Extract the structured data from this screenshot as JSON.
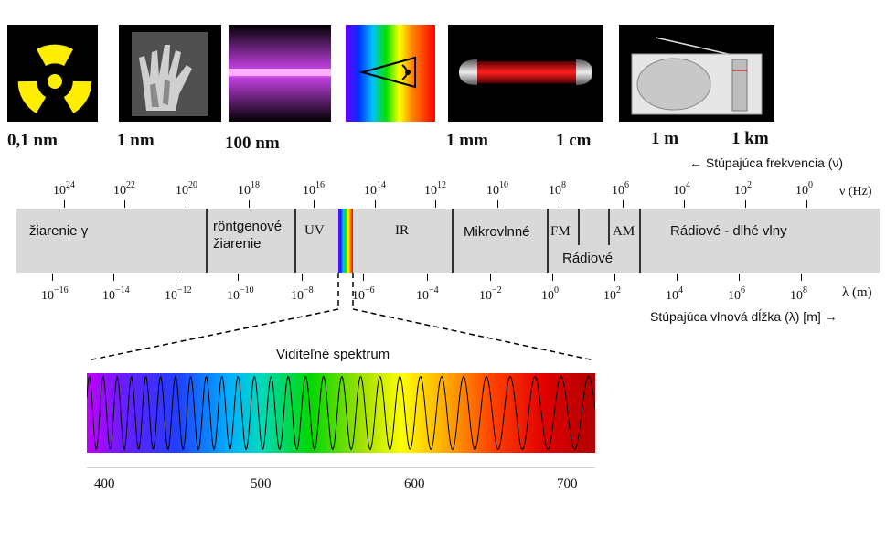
{
  "top_labels": {
    "l1": "0,1 nm",
    "l2": "1 nm",
    "l3": "100 nm",
    "l4": "1 mm",
    "l5": "1 cm",
    "l6": "1 m",
    "l7": "1 km"
  },
  "icons": {
    "i1": "radiation-icon",
    "i2": "xray-hand-icon",
    "i3": "uv-lamp-icon",
    "i4": "eye-prism-icon",
    "i5": "heater-icon",
    "i6": "radio-icon"
  },
  "freq_caption": "← Stúpajúca frekvencia (ν)",
  "freq_unit": "ν (Hz)",
  "freq_ticks": [
    {
      "base": "10",
      "exp": "24"
    },
    {
      "base": "10",
      "exp": "22"
    },
    {
      "base": "10",
      "exp": "20"
    },
    {
      "base": "10",
      "exp": "18"
    },
    {
      "base": "10",
      "exp": "16"
    },
    {
      "base": "10",
      "exp": "14"
    },
    {
      "base": "10",
      "exp": "12"
    },
    {
      "base": "10",
      "exp": "10"
    },
    {
      "base": "10",
      "exp": "8"
    },
    {
      "base": "10",
      "exp": "6"
    },
    {
      "base": "10",
      "exp": "4"
    },
    {
      "base": "10",
      "exp": "2"
    },
    {
      "base": "10",
      "exp": "0"
    }
  ],
  "regions": {
    "gamma": "žiarenie γ",
    "xray_1": "röntgenové",
    "xray_2": "žiarenie",
    "uv": "UV",
    "ir": "IR",
    "micro": "Mikrovlnné",
    "fm": "FM",
    "am": "AM",
    "radio": "Rádiové",
    "long": "Rádiové - dlhé vlny"
  },
  "wl_unit": "λ (m)",
  "wl_caption": "Stúpajúca vlnová dĺžka (λ) [m] →",
  "wl_ticks": [
    {
      "base": "10",
      "exp": "−16"
    },
    {
      "base": "10",
      "exp": "−14"
    },
    {
      "base": "10",
      "exp": "−12"
    },
    {
      "base": "10",
      "exp": "−10"
    },
    {
      "base": "10",
      "exp": "−8"
    },
    {
      "base": "10",
      "exp": "−6"
    },
    {
      "base": "10",
      "exp": "−4"
    },
    {
      "base": "10",
      "exp": "−2"
    },
    {
      "base": "10",
      "exp": "0"
    },
    {
      "base": "10",
      "exp": "2"
    },
    {
      "base": "10",
      "exp": "4"
    },
    {
      "base": "10",
      "exp": "6"
    },
    {
      "base": "10",
      "exp": "8"
    }
  ],
  "visible": {
    "title": "Viditeľné spektrum",
    "ticks": [
      "400",
      "500",
      "600",
      "700"
    ]
  },
  "colors": {
    "band": "#d9d9d9",
    "radiation": "#ffee00",
    "uv_glow": "#e060ff",
    "heater": "#e00000"
  }
}
